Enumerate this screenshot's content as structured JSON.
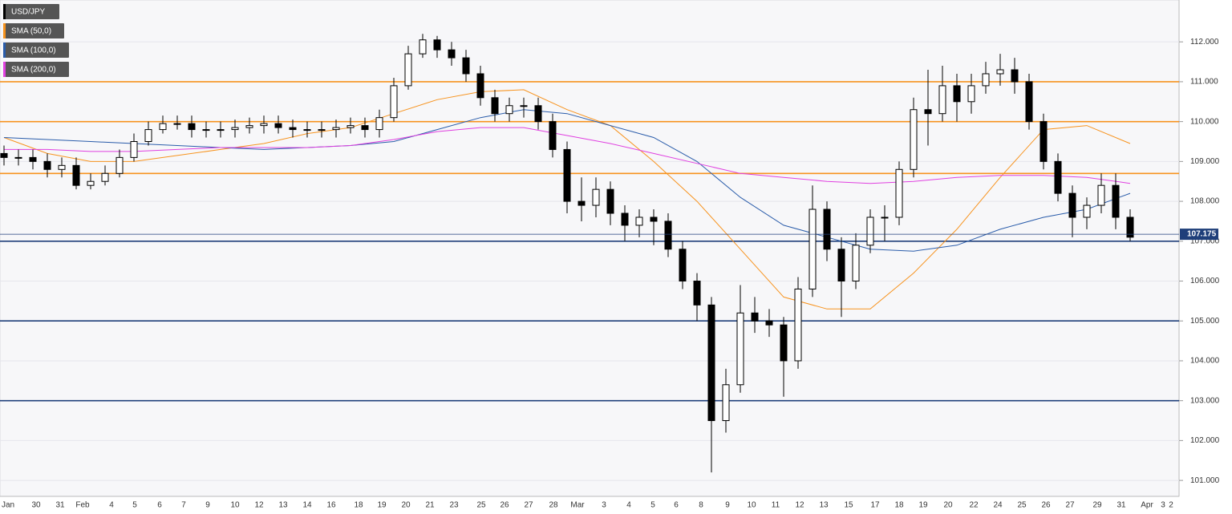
{
  "chart_data": {
    "type": "candlestick",
    "legend": [
      "USD/JPY",
      "SMA (50,0)",
      "SMA (100,0)",
      "SMA (200,0)"
    ],
    "legend_colors": [
      "#000000",
      "#f7931e",
      "#2a5caa",
      "#e040e0"
    ],
    "x_labels": [
      "Jan",
      "30",
      "31",
      "Feb",
      "4",
      "5",
      "6",
      "7",
      "9",
      "10",
      "12",
      "13",
      "14",
      "16",
      "18",
      "19",
      "20",
      "21",
      "23",
      "25",
      "26",
      "27",
      "28",
      "Mar",
      "3",
      "4",
      "5",
      "6",
      "8",
      "9",
      "10",
      "11",
      "12",
      "13",
      "15",
      "17",
      "18",
      "19",
      "20",
      "22",
      "24",
      "25",
      "26",
      "27",
      "29",
      "31",
      "Apr",
      "2",
      "3"
    ],
    "open": [
      109.2,
      109.1,
      109.1,
      109.0,
      108.8,
      108.9,
      108.4,
      108.5,
      108.7,
      109.1,
      109.5,
      109.8,
      109.95,
      109.95,
      109.8,
      109.8,
      109.8,
      109.85,
      109.9,
      109.95,
      109.85,
      109.8,
      109.8,
      109.8,
      109.85,
      109.9,
      109.8,
      110.1,
      110.9,
      111.7,
      112.05,
      111.8,
      111.6,
      111.2,
      110.6,
      110.2,
      110.4,
      110.4,
      110.0,
      109.3,
      108.0,
      107.9,
      108.3,
      107.7,
      107.4,
      107.6,
      107.5,
      106.8,
      106.0,
      105.4,
      102.5,
      103.4,
      105.2,
      105.0,
      104.9,
      104.0,
      105.8,
      107.8,
      106.8,
      106.0,
      106.9,
      107.6,
      107.6,
      108.8,
      110.3,
      110.2,
      110.9,
      110.5,
      110.9,
      111.2,
      111.3,
      111.0,
      110.0,
      109.0,
      108.2,
      107.6,
      107.9,
      108.4,
      107.6
    ],
    "high": [
      109.4,
      109.3,
      109.3,
      109.2,
      109.1,
      109.1,
      108.7,
      108.9,
      109.3,
      109.7,
      110.0,
      110.15,
      110.15,
      110.15,
      110.0,
      110.0,
      110.05,
      110.1,
      110.15,
      110.15,
      110.05,
      110.0,
      110.0,
      110.05,
      110.1,
      110.1,
      110.3,
      111.1,
      111.9,
      112.2,
      112.15,
      112.0,
      111.8,
      111.4,
      110.8,
      110.6,
      110.6,
      110.6,
      110.2,
      109.5,
      108.6,
      108.6,
      108.5,
      107.9,
      107.8,
      107.8,
      107.7,
      107.0,
      106.2,
      105.6,
      103.8,
      105.9,
      105.6,
      105.3,
      105.1,
      106.1,
      108.4,
      108.0,
      107.1,
      107.2,
      107.8,
      107.9,
      109.0,
      110.6,
      111.3,
      111.4,
      111.2,
      111.2,
      111.5,
      111.7,
      111.6,
      111.2,
      110.2,
      109.2,
      108.4,
      108.1,
      108.7,
      108.7,
      107.8
    ],
    "low": [
      108.9,
      108.9,
      108.8,
      108.6,
      108.6,
      108.3,
      108.3,
      108.4,
      108.6,
      109.0,
      109.4,
      109.7,
      109.8,
      109.6,
      109.6,
      109.6,
      109.6,
      109.7,
      109.7,
      109.7,
      109.6,
      109.6,
      109.6,
      109.6,
      109.7,
      109.6,
      109.6,
      110.0,
      110.8,
      111.6,
      111.6,
      111.4,
      111.0,
      110.4,
      110.0,
      110.0,
      110.1,
      109.8,
      109.1,
      107.7,
      107.5,
      107.6,
      107.4,
      107.0,
      107.1,
      106.9,
      106.6,
      105.8,
      105.0,
      101.2,
      102.2,
      103.2,
      104.7,
      104.6,
      103.1,
      103.8,
      105.6,
      106.5,
      105.1,
      105.8,
      106.7,
      107.0,
      107.4,
      108.6,
      109.4,
      110.0,
      110.0,
      110.2,
      110.7,
      110.9,
      110.7,
      109.8,
      108.8,
      108.0,
      107.1,
      107.3,
      107.7,
      107.3,
      107.0
    ],
    "close": [
      109.1,
      109.1,
      109.0,
      108.8,
      108.9,
      108.4,
      108.5,
      108.7,
      109.1,
      109.5,
      109.8,
      109.95,
      109.95,
      109.8,
      109.8,
      109.8,
      109.85,
      109.9,
      109.95,
      109.85,
      109.8,
      109.8,
      109.8,
      109.85,
      109.9,
      109.8,
      110.1,
      110.9,
      111.7,
      112.05,
      111.8,
      111.6,
      111.2,
      110.6,
      110.2,
      110.4,
      110.4,
      110.0,
      109.3,
      108.0,
      107.9,
      108.3,
      107.7,
      107.4,
      107.6,
      107.5,
      106.8,
      106.0,
      105.4,
      102.5,
      103.4,
      105.2,
      105.0,
      104.9,
      104.0,
      105.8,
      107.8,
      106.8,
      106.0,
      106.9,
      107.6,
      107.6,
      108.8,
      110.3,
      110.2,
      110.9,
      110.5,
      110.9,
      111.2,
      111.3,
      111.0,
      110.0,
      109.0,
      108.2,
      107.6,
      107.9,
      108.4,
      107.6,
      107.1
    ],
    "series": [
      {
        "name": "SMA (50,0)",
        "color": "#f7931e",
        "values": [
          109.6,
          109.2,
          109.0,
          109.0,
          109.15,
          109.3,
          109.45,
          109.7,
          109.85,
          110.2,
          110.55,
          110.75,
          110.8,
          110.3,
          109.9,
          109.0,
          108.0,
          106.8,
          105.6,
          105.3,
          105.3,
          106.2,
          107.3,
          108.6,
          109.8,
          109.9,
          109.45
        ]
      },
      {
        "name": "SMA (100,0)",
        "color": "#2a5caa",
        "values": [
          109.6,
          109.55,
          109.5,
          109.45,
          109.4,
          109.35,
          109.3,
          109.35,
          109.4,
          109.5,
          109.8,
          110.1,
          110.3,
          110.2,
          109.9,
          109.6,
          109.0,
          108.1,
          107.4,
          107.1,
          106.8,
          106.75,
          106.9,
          107.3,
          107.6,
          107.8,
          108.2
        ]
      },
      {
        "name": "SMA (200,0)",
        "color": "#e040e0",
        "values": [
          109.3,
          109.3,
          109.25,
          109.25,
          109.3,
          109.35,
          109.35,
          109.35,
          109.4,
          109.55,
          109.75,
          109.85,
          109.85,
          109.65,
          109.45,
          109.2,
          108.95,
          108.7,
          108.6,
          108.5,
          108.45,
          108.5,
          108.6,
          108.65,
          108.65,
          108.6,
          108.45
        ]
      }
    ],
    "resistance_levels": [
      111,
      110,
      108.7
    ],
    "resistance_color": "#f7931e",
    "support_levels": [
      107,
      105,
      103
    ],
    "support_color": "#1f3f7a",
    "last_price": 107.175,
    "ylim": [
      100.6,
      113.05
    ],
    "yticks": [
      {
        "value": 101,
        "label": "101.000"
      },
      {
        "value": 102,
        "label": "102.000"
      },
      {
        "value": 103,
        "label": "103.000"
      },
      {
        "value": 104,
        "label": "104.000"
      },
      {
        "value": 105,
        "label": "105.000"
      },
      {
        "value": 106,
        "label": "106.000"
      },
      {
        "value": 107,
        "label": "107.000"
      },
      {
        "value": 108,
        "label": "108.000"
      },
      {
        "value": 109,
        "label": "109.000"
      },
      {
        "value": 110,
        "label": "110.000"
      },
      {
        "value": 111,
        "label": "111.000"
      },
      {
        "value": 112,
        "label": "112.000"
      }
    ],
    "grid": true
  }
}
